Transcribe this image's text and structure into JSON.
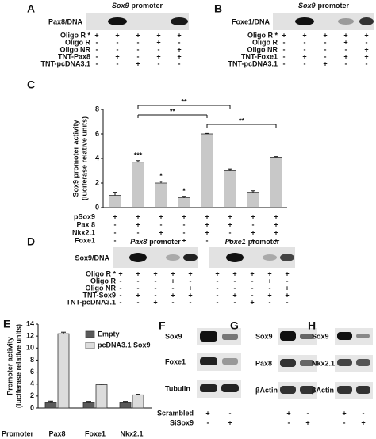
{
  "chart_data": [
    {
      "type": "bar",
      "letter": "C",
      "ylabel": [
        "Sox9 promoter activity",
        "(luciferase relative units)"
      ],
      "values": [
        1.0,
        3.7,
        2.0,
        0.8,
        6.0,
        3.0,
        1.25,
        4.1
      ],
      "errors": [
        0.25,
        0.12,
        0.15,
        0.12,
        0.04,
        0.15,
        0.12,
        0.05
      ],
      "significance": [
        null,
        "***",
        "*",
        "*",
        null,
        null,
        null,
        null
      ],
      "comparisons": [
        {
          "from": 1,
          "to": 5,
          "label": "**"
        },
        {
          "from": 1,
          "to": 4,
          "label": "**"
        },
        {
          "from": 4,
          "to": 7,
          "label": "**"
        }
      ],
      "color": "#c8c8c8",
      "ylim": [
        0,
        8
      ],
      "yticks": [
        0,
        2,
        4,
        6,
        8
      ],
      "rows": [
        {
          "name": "pSox9",
          "signs": [
            "+",
            "+",
            "+",
            "+",
            "+",
            "+",
            "+",
            "+"
          ]
        },
        {
          "name": "Pax 8",
          "signs": [
            "-",
            "+",
            "-",
            "-",
            "+",
            "+",
            "-",
            "+"
          ]
        },
        {
          "name": "Nkx2.1",
          "signs": [
            "-",
            "-",
            "+",
            "-",
            "+",
            "-",
            "+",
            "+"
          ]
        },
        {
          "name": "Foxe1",
          "signs": [
            "-",
            "-",
            "-",
            "+",
            "-",
            "+",
            "+",
            "+"
          ]
        }
      ]
    },
    {
      "type": "bar",
      "letter": "E",
      "ylabel": [
        "Promoter activity",
        "(luciferase relative units)"
      ],
      "xlabel": "Promoter",
      "categories": [
        "Pax8",
        "Foxe1",
        "Nkx2.1"
      ],
      "series": [
        {
          "name": "Empty",
          "color": "#5a5a5a",
          "values": [
            1.0,
            1.0,
            1.0
          ],
          "errors": [
            0.15,
            0.1,
            0.1
          ]
        },
        {
          "name": "pcDNA3.1 Sox9",
          "color": "#dcdcdc",
          "values": [
            12.4,
            3.9,
            2.2
          ],
          "errors": [
            0.25,
            0.1,
            0.1
          ]
        }
      ],
      "ylim": [
        0,
        14
      ],
      "yticks": [
        0,
        2,
        4,
        6,
        8,
        10,
        12,
        14
      ]
    }
  ],
  "panels": {
    "A": {
      "letter": "A",
      "label": "Pax8/DNA",
      "gels": [
        {
          "gene": "Sox9",
          "word": "promoter"
        }
      ],
      "rows": [
        {
          "name": "Oligo R *",
          "signs": [
            "+",
            "+",
            "+",
            "+",
            "+"
          ]
        },
        {
          "name": "Oligo R",
          "signs": [
            "-",
            "-",
            "-",
            "+",
            "-"
          ]
        },
        {
          "name": "Oligo NR",
          "signs": [
            "-",
            "-",
            "-",
            "-",
            "+"
          ]
        },
        {
          "name": "TNT-Pax8",
          "signs": [
            "-",
            "+",
            "-",
            "+",
            "+"
          ]
        },
        {
          "name": "TNT-pcDNA3.1",
          "signs": [
            "-",
            "-",
            "+",
            "-",
            "-"
          ]
        }
      ]
    },
    "B": {
      "letter": "B",
      "label": "Foxe1/DNA",
      "gels": [
        {
          "gene": "Sox9",
          "word": "promoter"
        }
      ],
      "rows": [
        {
          "name": "Oligo R *",
          "signs": [
            "+",
            "+",
            "+",
            "+",
            "+"
          ]
        },
        {
          "name": "Oligo R",
          "signs": [
            "-",
            "-",
            "-",
            "+",
            "-"
          ]
        },
        {
          "name": "Oligo NR",
          "signs": [
            "-",
            "-",
            "-",
            "-",
            "+"
          ]
        },
        {
          "name": "TNT-Foxe1",
          "signs": [
            "-",
            "+",
            "-",
            "+",
            "+"
          ]
        },
        {
          "name": "TNT-pcDNA3.1",
          "signs": [
            "-",
            "-",
            "+",
            "-",
            "-"
          ]
        }
      ]
    },
    "D": {
      "letter": "D",
      "label": "Sox9/DNA",
      "gels": [
        {
          "gene": "Pax8",
          "word": "promoter"
        },
        {
          "gene": "Foxe1",
          "word": "promoter"
        }
      ],
      "rows": [
        {
          "name": "Oligo R *",
          "signs": [
            "+",
            "+",
            "+",
            "+",
            "+",
            "+",
            "+",
            "+",
            "+",
            "+"
          ]
        },
        {
          "name": "Oligo R",
          "signs": [
            "-",
            "-",
            "-",
            "+",
            "-",
            "-",
            "-",
            "-",
            "+",
            "-"
          ]
        },
        {
          "name": "Oligo NR",
          "signs": [
            "-",
            "-",
            "-",
            "-",
            "+",
            "-",
            "-",
            "-",
            "-",
            "+"
          ]
        },
        {
          "name": "TNT-Sox9",
          "signs": [
            "-",
            "+",
            "-",
            "+",
            "+",
            "-",
            "+",
            "-",
            "+",
            "+"
          ]
        },
        {
          "name": "TNT-pcDNA3.1",
          "signs": [
            "-",
            "-",
            "+",
            "-",
            "-",
            "-",
            "-",
            "+",
            "-",
            "-"
          ]
        }
      ]
    },
    "F": {
      "letter": "F",
      "blots": [
        "Sox9",
        "Foxe1",
        "Tubulin"
      ],
      "rows": [
        {
          "name": "Scrambled",
          "signs": [
            "+",
            "-"
          ]
        },
        {
          "name": "SiSox9",
          "signs": [
            "-",
            "+"
          ]
        }
      ]
    },
    "G": {
      "letter": "G",
      "blots": [
        "Sox9",
        "Pax8",
        "βActin"
      ],
      "rows": [
        {
          "signs": [
            "+",
            "-"
          ]
        },
        {
          "signs": [
            "-",
            "+"
          ]
        }
      ]
    },
    "H": {
      "letter": "H",
      "blots": [
        "Sox9",
        "Nkx2.1",
        "βActin"
      ],
      "rows": [
        {
          "signs": [
            "+",
            "-"
          ]
        },
        {
          "signs": [
            "-",
            "+"
          ]
        }
      ]
    }
  }
}
